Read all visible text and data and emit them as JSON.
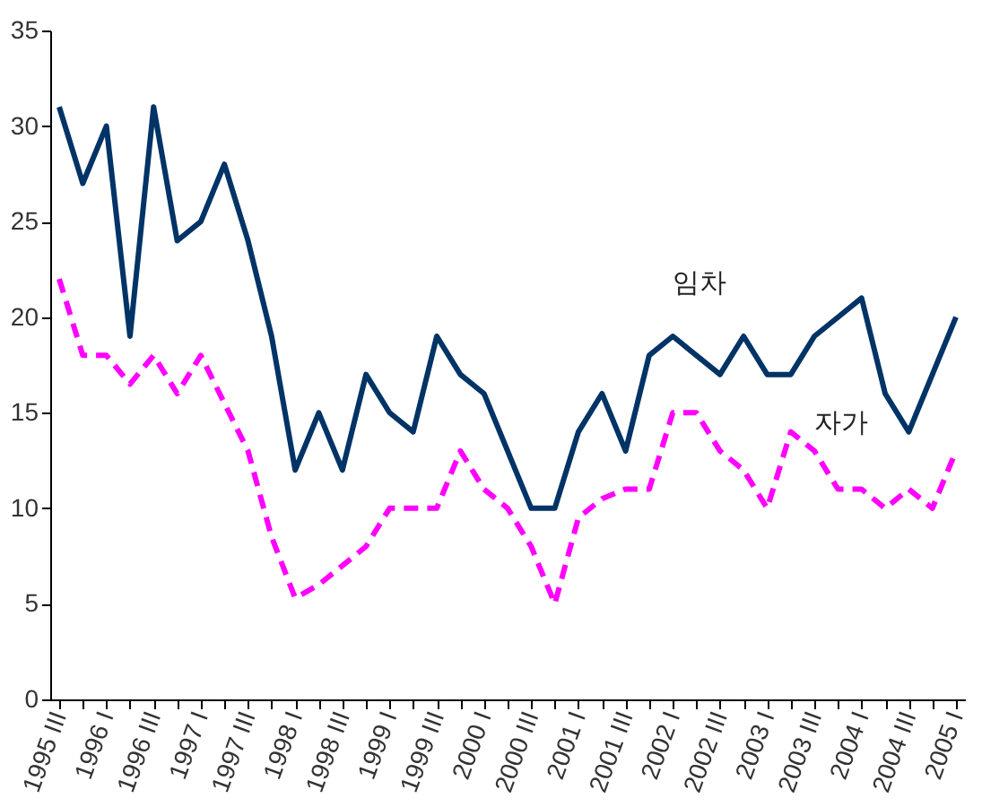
{
  "chart_data": {
    "type": "line",
    "categories": [
      "1995 III",
      null,
      "1996 I",
      null,
      "1996 III",
      null,
      "1997 I",
      null,
      "1997 III",
      null,
      "1998 I",
      null,
      "1998 III",
      null,
      "1999 I",
      null,
      "1999 III",
      null,
      "2000 I",
      null,
      "2000 III",
      null,
      "2001 I",
      null,
      "2001 III",
      null,
      "2002 I",
      null,
      "2002 III",
      null,
      "2003 I",
      null,
      "2003 III",
      null,
      "2004 I",
      null,
      "2004 III",
      null,
      "2005 I"
    ],
    "series": [
      {
        "name": "임차",
        "color": "#003366",
        "line_style": "solid",
        "values": [
          31,
          27,
          30,
          19,
          31,
          24,
          25,
          28,
          24,
          19,
          12,
          15,
          12,
          17,
          15,
          14,
          19,
          17,
          16,
          13,
          10,
          10,
          14,
          16,
          13,
          18,
          19,
          18,
          17,
          19,
          17,
          17,
          19,
          20,
          21,
          16,
          14,
          17,
          20
        ]
      },
      {
        "name": "자가",
        "color": "#ff00ff",
        "line_style": "dashed",
        "values": [
          22,
          18,
          18,
          16.5,
          18,
          16,
          18,
          15.5,
          13,
          8.5,
          5.3,
          6,
          7,
          8,
          10,
          10,
          10,
          13,
          11,
          10,
          8,
          5,
          9.5,
          10.5,
          11,
          11,
          15,
          15,
          13,
          12,
          10,
          14,
          13,
          11,
          11,
          10,
          11,
          10,
          13
        ]
      }
    ],
    "ylim": [
      0,
      35
    ],
    "yticks": [
      0,
      5,
      10,
      15,
      20,
      25,
      30,
      35
    ],
    "grid": false,
    "marker": "none"
  }
}
